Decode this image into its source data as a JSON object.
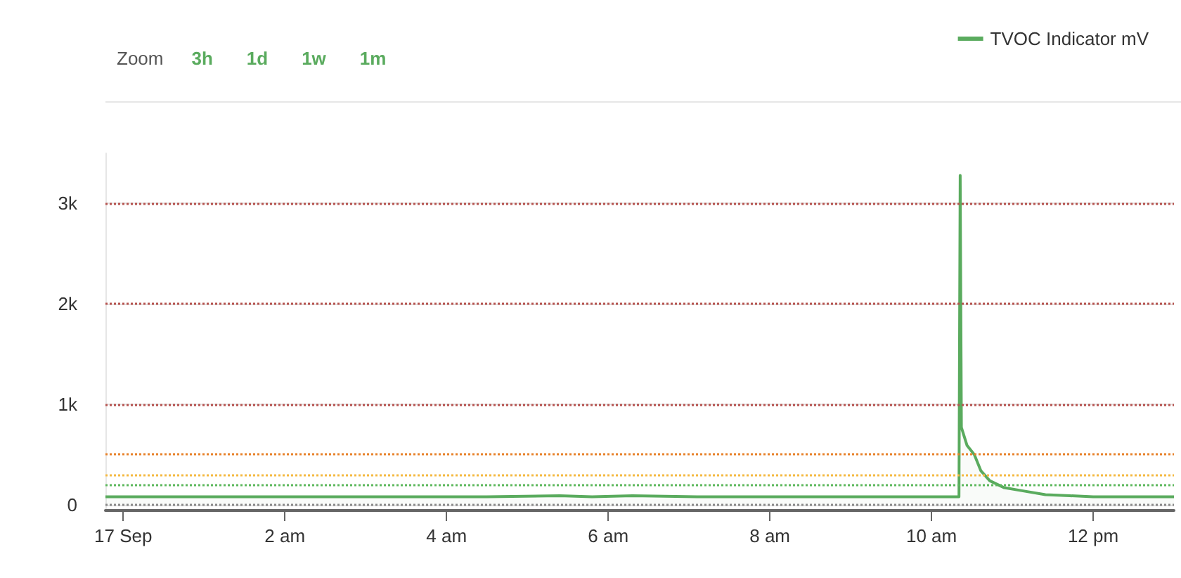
{
  "chart_data": {
    "type": "area",
    "annotations": [
      "Zoom",
      "3h",
      "1d",
      "1w",
      "1m"
    ],
    "x": [
      -0.22,
      0.5,
      1.5,
      2.5,
      3.5,
      4.5,
      5.4,
      5.8,
      6.3,
      7.1,
      8.0,
      9.0,
      10.0,
      10.34,
      10.355,
      10.37,
      10.44,
      10.53,
      10.61,
      10.72,
      10.9,
      11.12,
      11.41,
      11.71,
      12.0,
      13.0
    ],
    "series": [
      {
        "name": "TVOC Indicator mV",
        "color": "#5aab5e",
        "values": [
          80,
          80,
          80,
          80,
          80,
          80,
          90,
          80,
          90,
          80,
          80,
          80,
          80,
          80,
          3280,
          770,
          590,
          500,
          340,
          240,
          170,
          140,
          100,
          90,
          80,
          80
        ]
      }
    ],
    "xlim": [
      -0.22,
      13
    ],
    "xticks": [
      {
        "value": 0,
        "label": "17 Sep"
      },
      {
        "value": 2,
        "label": "2 am"
      },
      {
        "value": 4,
        "label": "4 am"
      },
      {
        "value": 6,
        "label": "6 am"
      },
      {
        "value": 8,
        "label": "8 am"
      },
      {
        "value": 10,
        "label": "10 am"
      },
      {
        "value": 12,
        "label": "12 pm"
      }
    ],
    "ylim": [
      -50,
      3500
    ],
    "yticks": [
      0,
      {
        "value": 1000,
        "label": "1k"
      },
      {
        "value": 2000,
        "label": "2k"
      },
      {
        "value": 3000,
        "label": "3k"
      }
    ],
    "ref_lines": [
      {
        "axis": "y",
        "value": 3000,
        "label": null,
        "color": "#b5524e",
        "line_style": "dotted"
      },
      {
        "axis": "y",
        "value": 2000,
        "label": null,
        "color": "#b5524e",
        "line_style": "dotted"
      },
      {
        "axis": "y",
        "value": 1000,
        "label": null,
        "color": "#b5524e",
        "line_style": "dotted"
      },
      {
        "axis": "y",
        "value": 500,
        "label": null,
        "color": "#e8822a",
        "line_style": "dotted"
      },
      {
        "axis": "y",
        "value": 300,
        "label": null,
        "color": "#f5b942",
        "line_style": "dotted"
      },
      {
        "axis": "y",
        "value": 200,
        "label": null,
        "color": "#5cb85c",
        "line_style": "dotted"
      },
      {
        "axis": "y",
        "value": 0,
        "label": null,
        "color": "#888888",
        "line_style": "dotted"
      }
    ],
    "grid": "y",
    "legend": "top right",
    "marker": "none",
    "line_style": "solid"
  }
}
